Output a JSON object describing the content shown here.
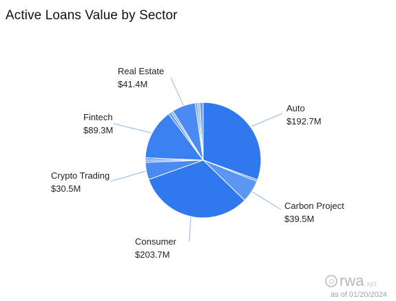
{
  "chart_data": {
    "type": "pie",
    "title": "Active Loans Value by Sector",
    "unit": "$M",
    "slices": [
      {
        "name": "Auto",
        "value": 192.7,
        "label": "$192.7M",
        "color": "#2f78ee"
      },
      {
        "name": "",
        "value": 3.0,
        "label": "",
        "color": "#4a8af2"
      },
      {
        "name": "Carbon Project",
        "value": 39.5,
        "label": "$39.5M",
        "color": "#5b96f3"
      },
      {
        "name": "Consumer",
        "value": 203.7,
        "label": "$203.7M",
        "color": "#2f78ee"
      },
      {
        "name": "Crypto Trading",
        "value": 30.5,
        "label": "$30.5M",
        "color": "#4a8af2"
      },
      {
        "name": "",
        "value": 4.0,
        "label": "",
        "color": "#6a9ff4"
      },
      {
        "name": "",
        "value": 4.0,
        "label": "",
        "color": "#5b96f3"
      },
      {
        "name": "Fintech",
        "value": 89.3,
        "label": "$89.3M",
        "color": "#3a80f0"
      },
      {
        "name": "",
        "value": 5.0,
        "label": "",
        "color": "#5b96f3"
      },
      {
        "name": "",
        "value": 4.0,
        "label": "",
        "color": "#7aaaf5"
      },
      {
        "name": "Real Estate",
        "value": 41.4,
        "label": "$41.4M",
        "color": "#4a8af2"
      },
      {
        "name": "",
        "value": 4.0,
        "label": "",
        "color": "#6a9ff4"
      },
      {
        "name": "",
        "value": 4.0,
        "label": "",
        "color": "#8ab4f6"
      },
      {
        "name": "",
        "value": 6.0,
        "label": "",
        "color": "#6a9ff4"
      }
    ]
  },
  "watermark": {
    "brand": "rwa",
    "tld": ".xyz"
  },
  "as_of": "as of 01/20/2024"
}
